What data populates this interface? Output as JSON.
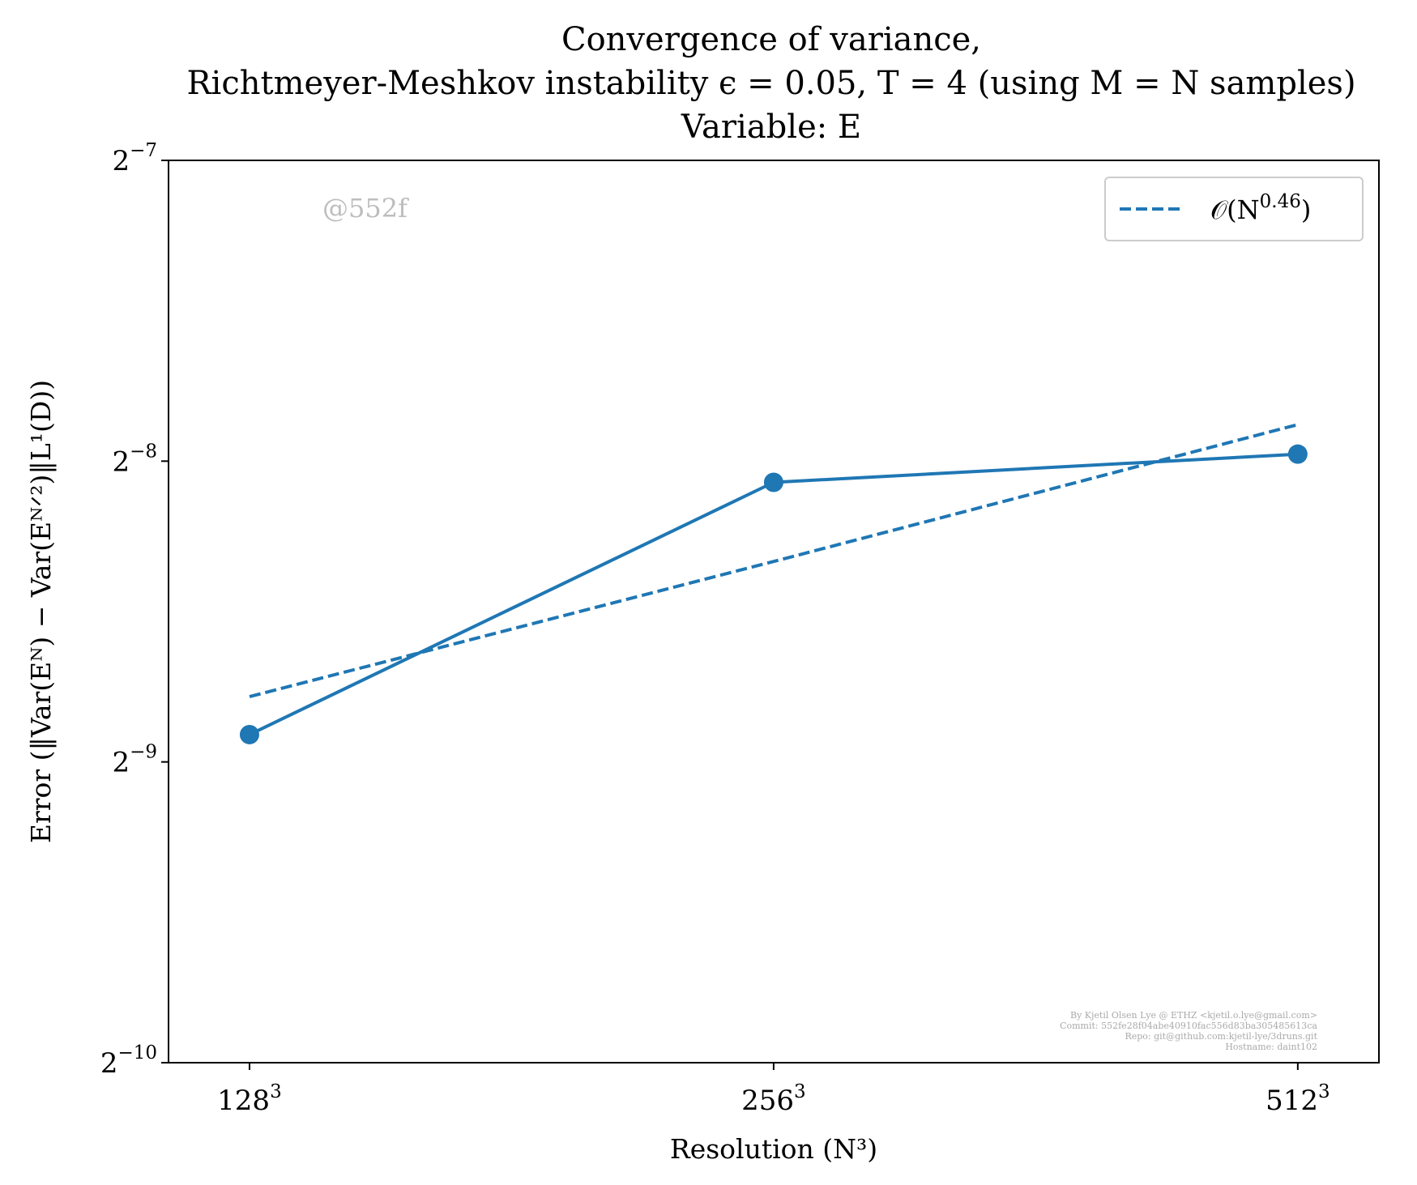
{
  "chart_data": {
    "type": "line",
    "title_lines": [
      "Convergence of variance,",
      "Richtmeyer-Meshkov instability ϵ = 0.05, T = 4 (using M = N samples)",
      "Variable: E"
    ],
    "xlabel": "Resolution (N³)",
    "ylabel": "Error (‖Var(Eᴺ) − Var(Eᴺᐟ²)‖L¹(D))",
    "x_scale": "log2",
    "y_scale": "log2",
    "x": [
      128,
      256,
      512
    ],
    "x_ticks": [
      {
        "value": 128,
        "base": "128",
        "exp": "3"
      },
      {
        "value": 256,
        "base": "256",
        "exp": "3"
      },
      {
        "value": 512,
        "base": "512",
        "exp": "3"
      }
    ],
    "y_ticks": [
      {
        "value": 0.0009765625,
        "base": "2",
        "exp": "−10"
      },
      {
        "value": 0.001953125,
        "base": "2",
        "exp": "−9"
      },
      {
        "value": 0.00390625,
        "base": "2",
        "exp": "−8"
      },
      {
        "value": 0.0078125,
        "base": "2",
        "exp": "−7"
      }
    ],
    "xlim": [
      115,
      570
    ],
    "ylim": [
      0.0009765625,
      0.0078125
    ],
    "series": [
      {
        "style": "solid-marker",
        "color": "#1f77b4",
        "values": [
          0.00208,
          0.00372,
          0.00397
        ]
      },
      {
        "name": "𝒪(N^0.46)",
        "style": "dashed",
        "color": "#1f77b4",
        "values": [
          0.00227,
          0.0031,
          0.00425
        ]
      }
    ],
    "legend": {
      "placement": "top-right",
      "entries": [
        {
          "label_main": "𝒪(N",
          "label_exp": "0.46",
          "label_close": ")"
        }
      ]
    },
    "grid": false
  },
  "watermark": "@552f",
  "credits": [
    "By Kjetil Olsen Lye @ ETHZ <kjetil.o.lye@gmail.com>",
    "Commit: 552fe28f04abe40910fac556d83ba305485613ca",
    "Repo: git@github.com:kjetil-lye/3druns.git",
    "Hostname: daint102"
  ]
}
